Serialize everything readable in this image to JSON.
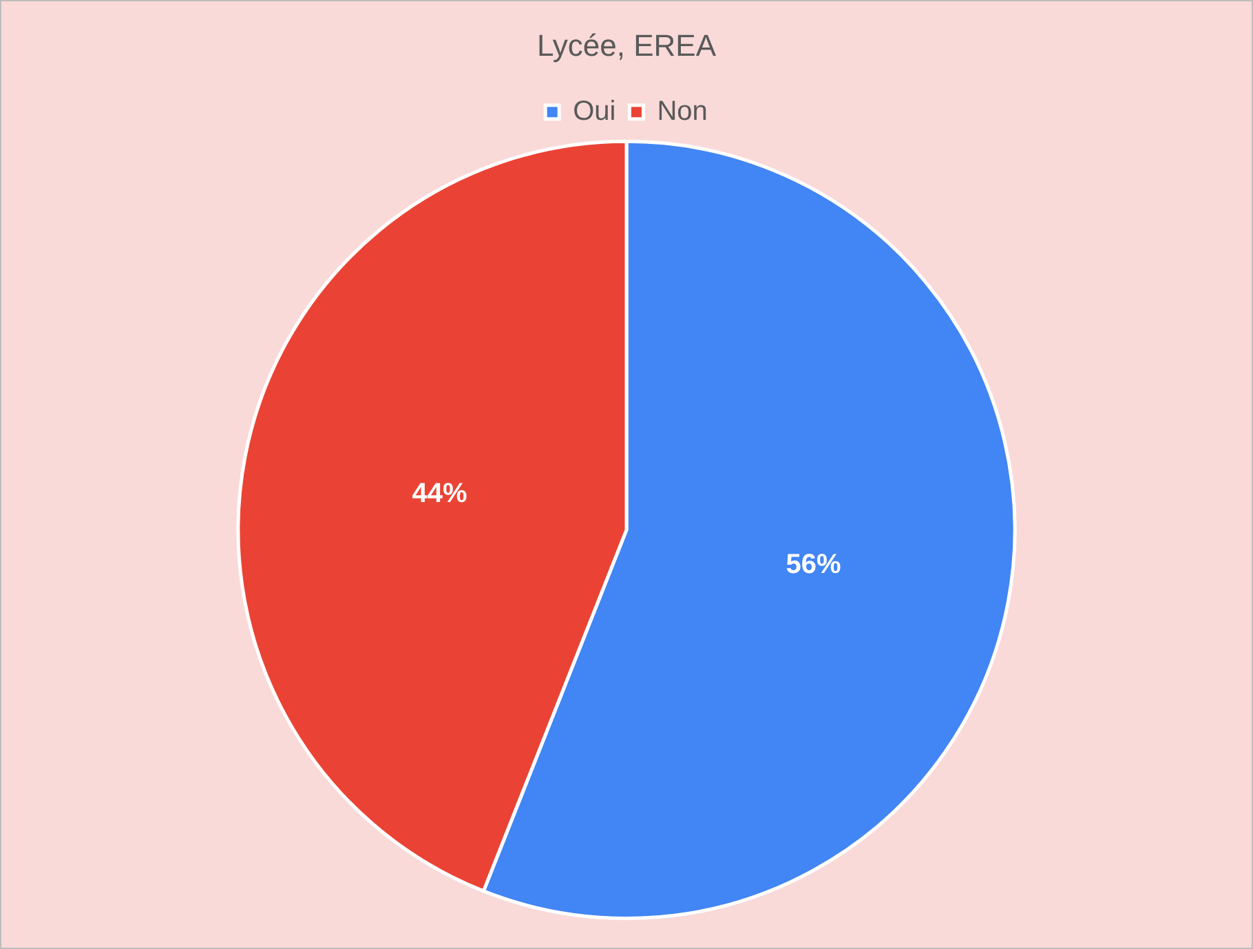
{
  "chart_data": {
    "type": "pie",
    "title": "Lycée, EREA",
    "categories": [
      "Oui",
      "Non"
    ],
    "values": [
      56,
      44
    ],
    "colors": [
      "#4285f4",
      "#ea4335"
    ],
    "legend": "top",
    "value_labels": [
      "56%",
      "44%"
    ]
  }
}
